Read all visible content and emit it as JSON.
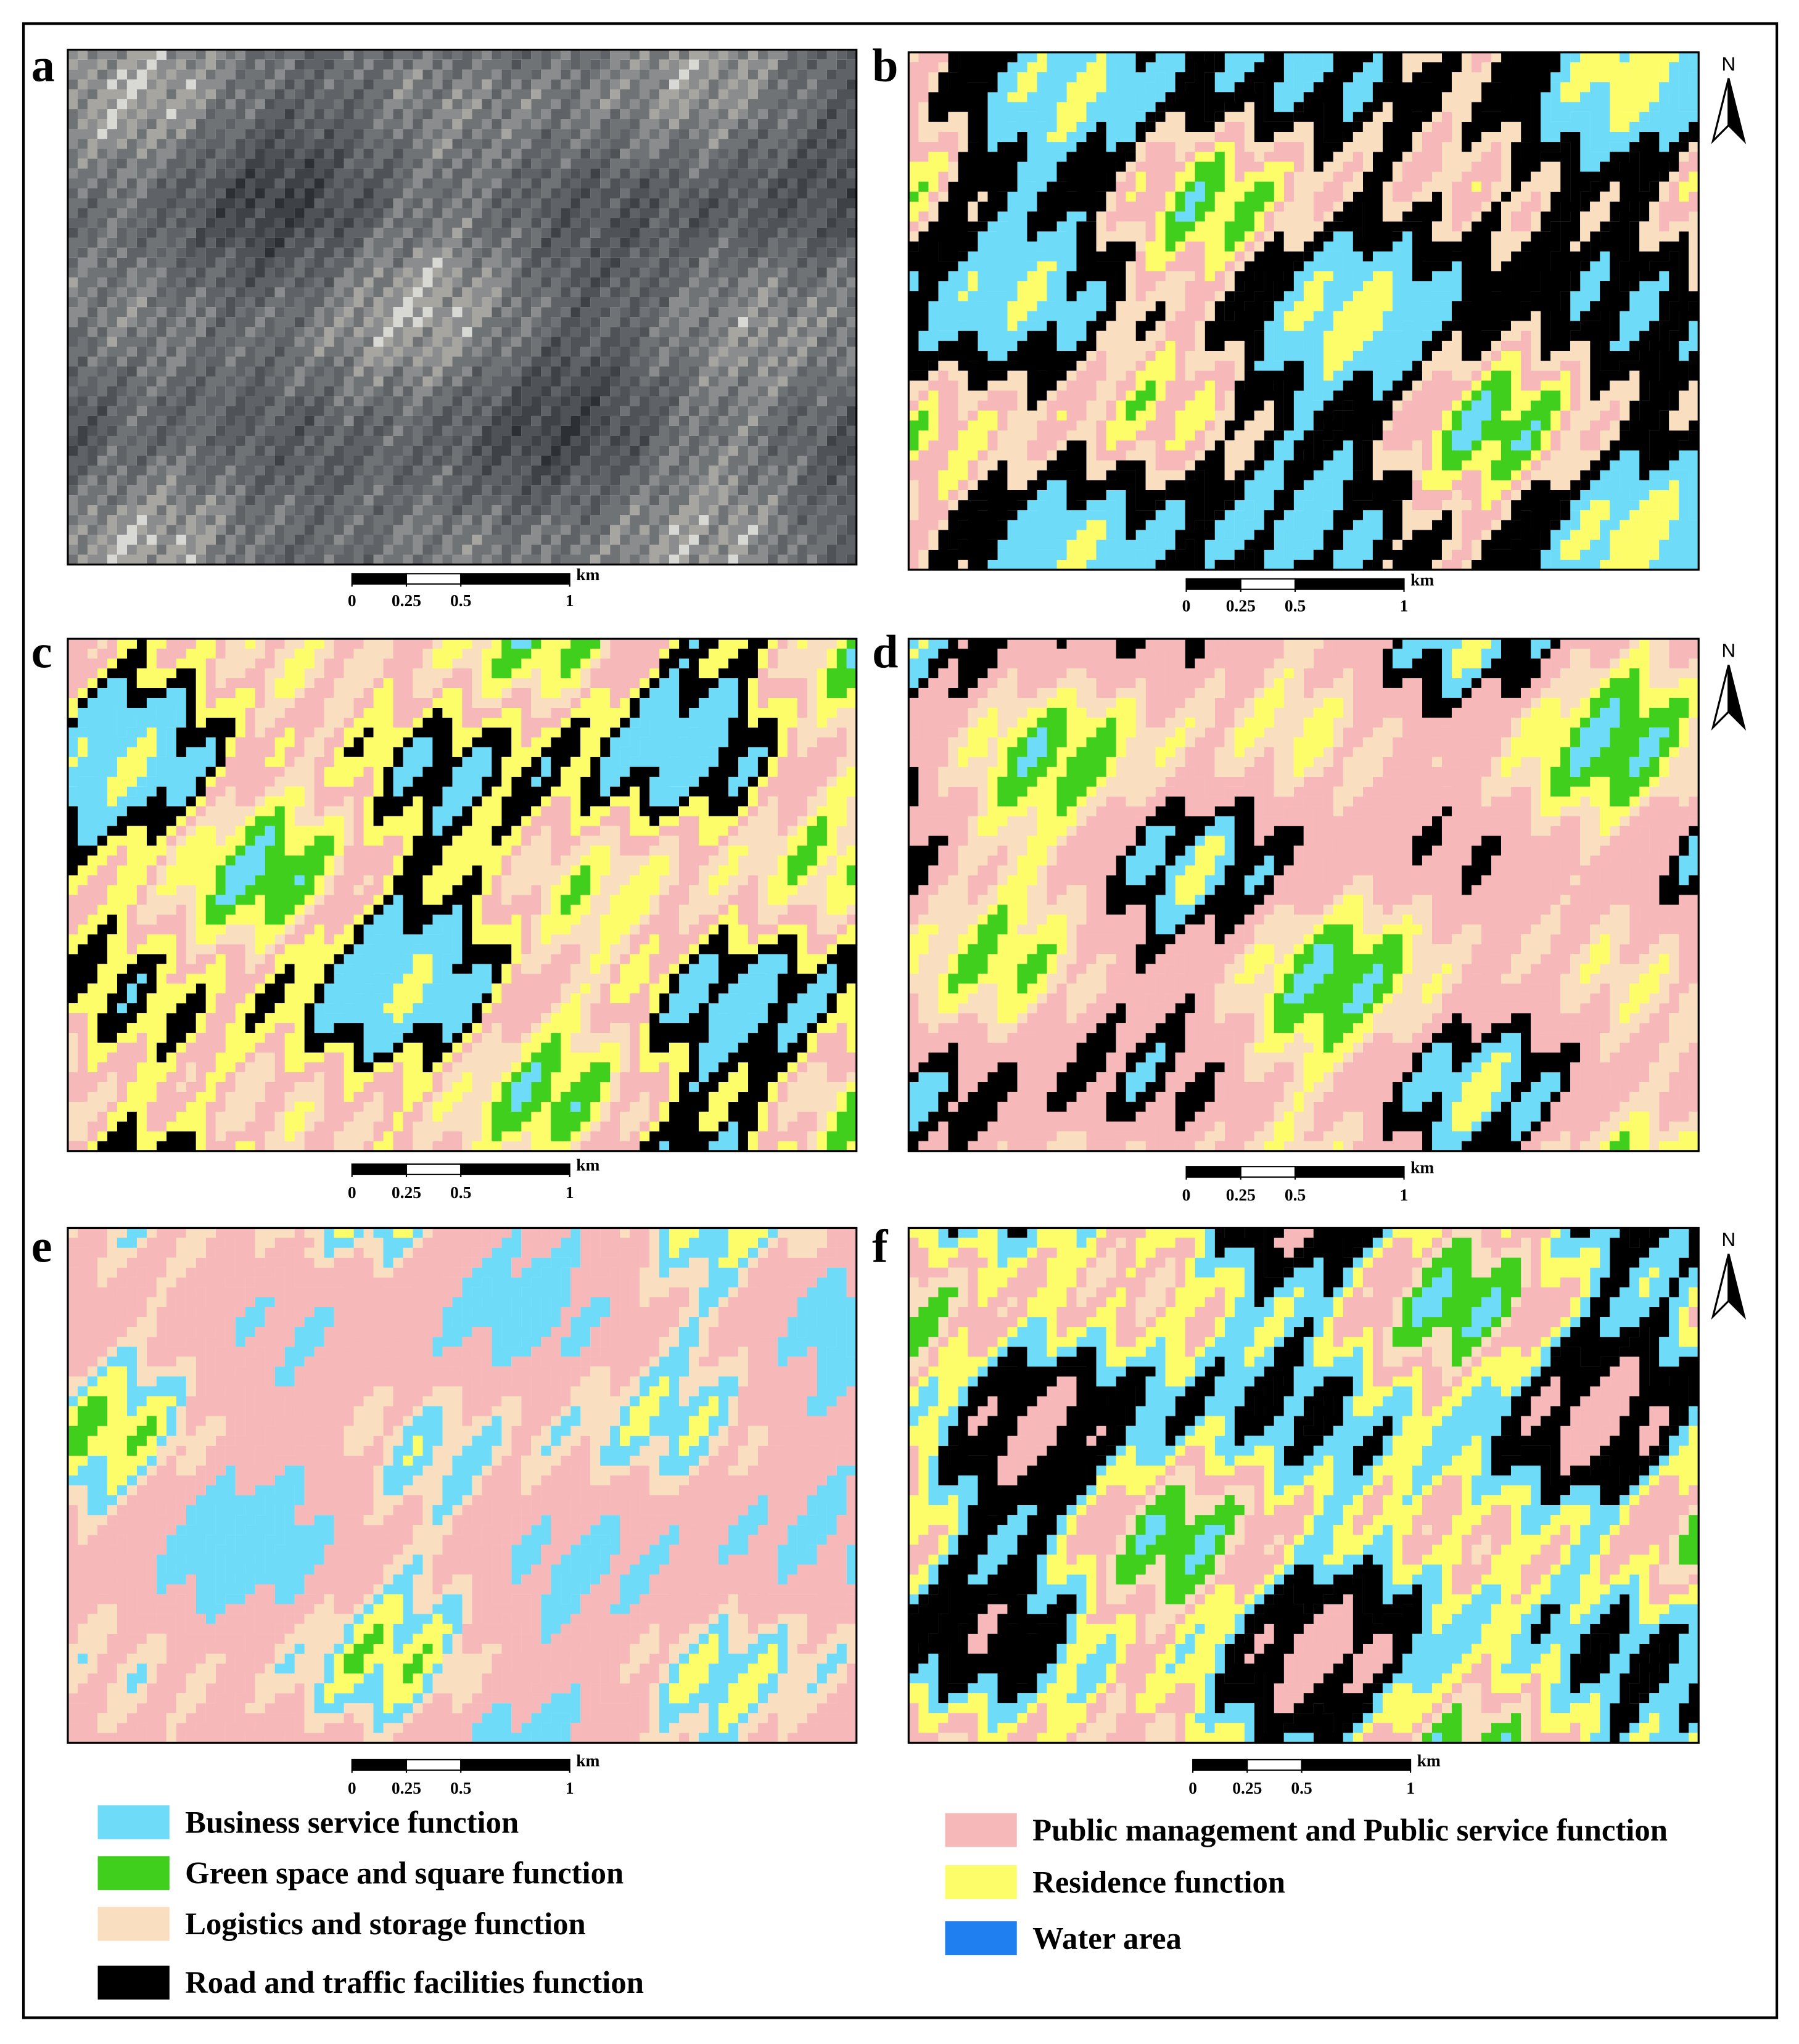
{
  "panels": [
    {
      "label": "a",
      "scale_ticks": [
        0,
        0.25,
        0.5,
        1
      ],
      "scale_unit": "km"
    },
    {
      "label": "b",
      "north": "N",
      "scale_ticks": [
        0,
        0.25,
        0.5,
        1
      ],
      "scale_unit": "km"
    },
    {
      "label": "c",
      "scale_ticks": [
        0,
        0.25,
        0.5,
        1
      ],
      "scale_unit": "km"
    },
    {
      "label": "d",
      "north": "N",
      "scale_ticks": [
        0,
        0.25,
        0.5,
        1
      ],
      "scale_unit": "km"
    },
    {
      "label": "e",
      "scale_ticks": [
        0,
        0.25,
        0.5,
        1
      ],
      "scale_unit": "km"
    },
    {
      "label": "f",
      "north": "N",
      "scale_ticks": [
        0,
        0.25,
        0.5,
        1
      ],
      "scale_unit": "km"
    }
  ],
  "legend": [
    {
      "label": "Business service function",
      "color": "#6edcf8"
    },
    {
      "label": "Green space and square function",
      "color": "#3fcf1c"
    },
    {
      "label": "Logistics and storage function",
      "color": "#f9dfbf"
    },
    {
      "label": "Road and traffic facilities function",
      "color": "#000000"
    },
    {
      "label": "Public management and Public service function",
      "color": "#f6b8b8"
    },
    {
      "label": "Residence function",
      "color": "#fdfd6a"
    },
    {
      "label": "Water area",
      "color": "#1f7ef0"
    }
  ]
}
